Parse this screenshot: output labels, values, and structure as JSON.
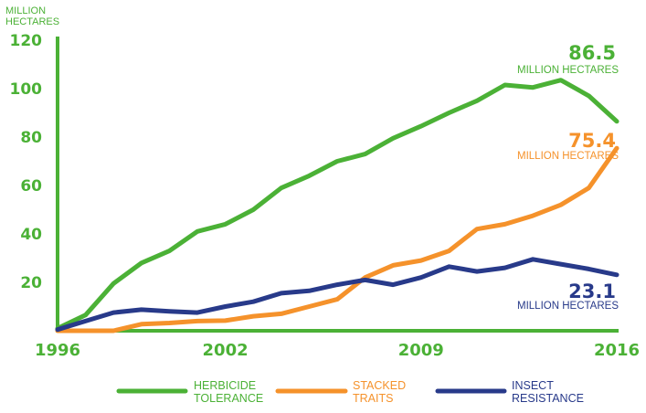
{
  "chart_data": {
    "type": "line",
    "ylabel": [
      "MILLION",
      "HECTARES"
    ],
    "xlim": [
      1996,
      2016
    ],
    "ylim": [
      0,
      120
    ],
    "x_ticks": [
      "1996",
      "2002",
      "2009",
      "2016"
    ],
    "y_ticks": [
      "120",
      "100",
      "80",
      "60",
      "40",
      "20"
    ],
    "x": [
      1996,
      1997,
      1998,
      1999,
      2000,
      2001,
      2002,
      2003,
      2004,
      2005,
      2006,
      2007,
      2008,
      2009,
      2010,
      2011,
      2012,
      2013,
      2014,
      2015,
      2016
    ],
    "series": [
      {
        "name": [
          "HERBICIDE",
          "TOLERANCE"
        ],
        "color": "#4bb136",
        "values": [
          1,
          6.5,
          19.5,
          28,
          33,
          41,
          44,
          50,
          59,
          64,
          70,
          73,
          79.5,
          84.5,
          90,
          95,
          101.5,
          100.5,
          103.5,
          97,
          86.5
        ],
        "end_label": {
          "value": "86.5",
          "unit": "MILLION HECTARES"
        }
      },
      {
        "name": [
          "STACKED",
          "TRAITS"
        ],
        "color": "#f5922b",
        "values": [
          0,
          0,
          0,
          2.7,
          3.2,
          4,
          4.2,
          6,
          7,
          10,
          13,
          22,
          27,
          29,
          33,
          42,
          44,
          47.5,
          52,
          59,
          75.4
        ],
        "end_label": {
          "value": "75.4",
          "unit": "MILLION HECTARES"
        }
      },
      {
        "name": [
          "INSECT",
          "RESISTANCE"
        ],
        "color": "#283a8a",
        "values": [
          0.5,
          4,
          7.5,
          8.7,
          8,
          7.5,
          10,
          12,
          15.5,
          16.5,
          19,
          21,
          19,
          22,
          26.5,
          24.5,
          26,
          29.5,
          27.5,
          25.5,
          23.1
        ],
        "end_label": {
          "value": "23.1",
          "unit": "MILLION HECTARES"
        }
      }
    ]
  }
}
